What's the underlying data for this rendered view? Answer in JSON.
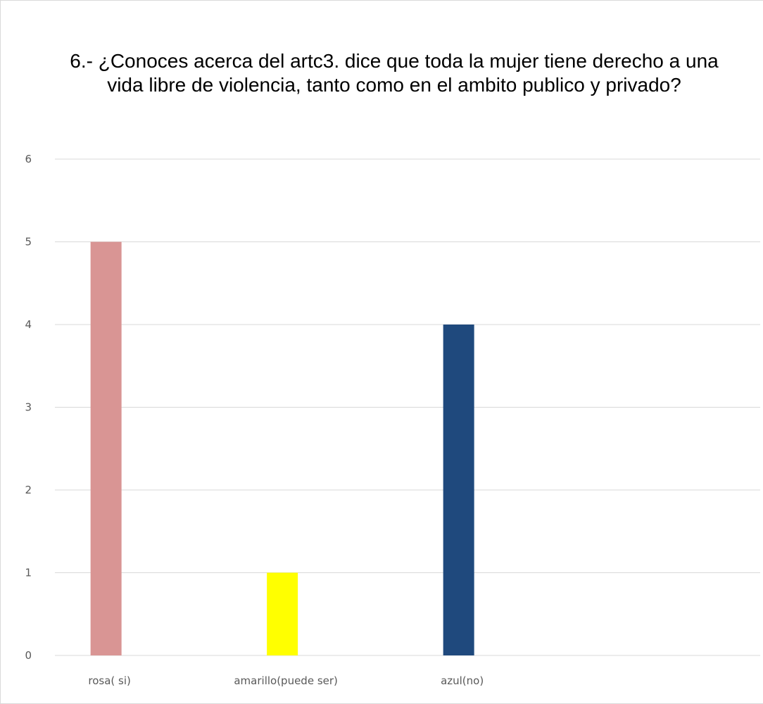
{
  "chart_data": {
    "type": "bar",
    "title": "6.- ¿Conoces acerca del artc3. dice que toda la mujer tiene derecho a una vida libre de violencia, tanto como en el ambito publico y privado?",
    "categories": [
      "rosa( si)",
      "amarillo(puede ser)",
      "azul(no)",
      ""
    ],
    "values": [
      5,
      1,
      4,
      null
    ],
    "colors": [
      "#d99594",
      "#ffff00",
      "#1f497d"
    ],
    "ylim": [
      0,
      6
    ],
    "yticks": [
      "0",
      "1",
      "2",
      "3",
      "4",
      "5",
      "6"
    ],
    "grid": true,
    "legend": "none",
    "xlabel": "",
    "ylabel": ""
  }
}
